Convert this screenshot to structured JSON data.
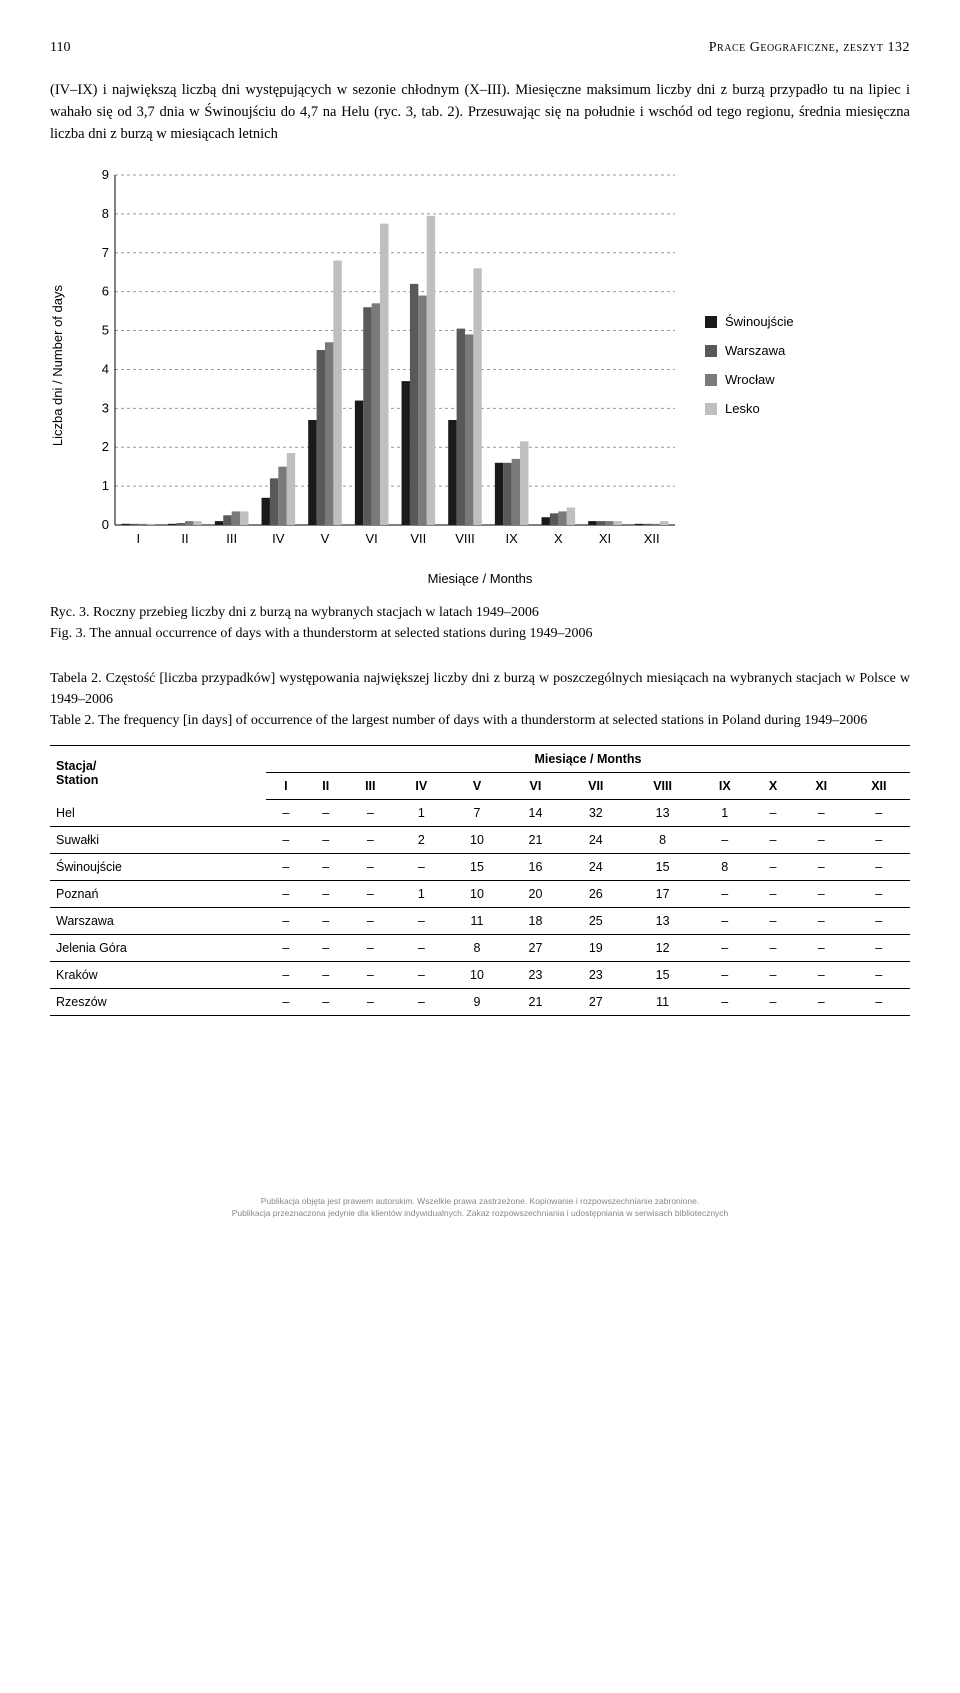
{
  "header": {
    "page_number": "110",
    "running_title": "Prace Geograficzne, zeszyt 132"
  },
  "body_paragraph": "(IV–IX) i największą liczbą dni występujących w sezonie chłodnym (X–III). Miesięczne maksimum liczby dni z burzą przypadło tu na lipiec i wahało się od 3,7 dnia w Świnoujściu do 4,7 na Helu (ryc. 3, tab. 2). Przesuwając się na południe i wschód od tego regionu, średnia miesięczna liczba dni z burzą w miesiącach letnich",
  "chart": {
    "type": "bar",
    "ylabel": "Liczba dni / Number of days",
    "xlabel": "Miesiące / Months",
    "ylim": [
      0,
      9
    ],
    "ytick_step": 1,
    "categories": [
      "I",
      "II",
      "III",
      "IV",
      "V",
      "VI",
      "VII",
      "VIII",
      "IX",
      "X",
      "XI",
      "XII"
    ],
    "series": [
      {
        "name": "Świnoujście",
        "color": "#1a1a1a",
        "values": [
          0.03,
          0.03,
          0.1,
          0.7,
          2.7,
          3.2,
          3.7,
          2.7,
          1.6,
          0.2,
          0.1,
          0.03
        ]
      },
      {
        "name": "Warszawa",
        "color": "#595959",
        "values": [
          0.03,
          0.05,
          0.25,
          1.2,
          4.5,
          5.6,
          6.2,
          5.05,
          1.6,
          0.3,
          0.1,
          0.03
        ]
      },
      {
        "name": "Wrocław",
        "color": "#7a7a7a",
        "values": [
          0.03,
          0.1,
          0.35,
          1.5,
          4.7,
          5.7,
          5.9,
          4.9,
          1.7,
          0.35,
          0.1,
          0.03
        ]
      },
      {
        "name": "Lesko",
        "color": "#bfbfbf",
        "values": [
          0.03,
          0.1,
          0.35,
          1.85,
          6.8,
          7.75,
          7.95,
          6.6,
          2.15,
          0.45,
          0.1,
          0.1
        ]
      }
    ],
    "grid_color": "#999999",
    "axis_color": "#000000",
    "background_color": "#ffffff",
    "bar_group_width": 0.72,
    "label_fontsize": 13,
    "tick_fontsize": 13,
    "font_family": "Arial, sans-serif"
  },
  "fig_caption": {
    "line1": "Ryc. 3. Roczny przebieg liczby dni z burzą na wybranych stacjach w latach 1949–2006",
    "line2": "Fig. 3. The annual occurrence of days with a thunderstorm at selected stations during 1949–2006"
  },
  "table_caption": {
    "line1": "Tabela 2. Częstość [liczba przypadków] występowania  największej liczby dni z burzą w poszczególnych miesiącach na wybranych stacjach w Polsce w 1949–2006",
    "line2": "Table 2. The frequency [in days] of occurrence of the largest number of days with a thunderstorm at selected stations in Poland during 1949–2006"
  },
  "table": {
    "station_header": "Stacja/\nStation",
    "months_header": "Miesiące / Months",
    "columns": [
      "I",
      "II",
      "III",
      "IV",
      "V",
      "VI",
      "VII",
      "VIII",
      "IX",
      "X",
      "XI",
      "XII"
    ],
    "rows": [
      {
        "station": "Hel",
        "vals": [
          "–",
          "–",
          "–",
          "1",
          "7",
          "14",
          "32",
          "13",
          "1",
          "–",
          "–",
          "–"
        ]
      },
      {
        "station": "Suwałki",
        "vals": [
          "–",
          "–",
          "–",
          "2",
          "10",
          "21",
          "24",
          "8",
          "–",
          "–",
          "–",
          "–"
        ]
      },
      {
        "station": "Świnoujście",
        "vals": [
          "–",
          "–",
          "–",
          "–",
          "15",
          "16",
          "24",
          "15",
          "8",
          "–",
          "–",
          "–"
        ]
      },
      {
        "station": "Poznań",
        "vals": [
          "–",
          "–",
          "–",
          "1",
          "10",
          "20",
          "26",
          "17",
          "–",
          "–",
          "–",
          "–"
        ]
      },
      {
        "station": "Warszawa",
        "vals": [
          "–",
          "–",
          "–",
          "–",
          "11",
          "18",
          "25",
          "13",
          "–",
          "–",
          "–",
          "–"
        ]
      },
      {
        "station": "Jelenia Góra",
        "vals": [
          "–",
          "–",
          "–",
          "–",
          "8",
          "27",
          "19",
          "12",
          "–",
          "–",
          "–",
          "–"
        ]
      },
      {
        "station": "Kraków",
        "vals": [
          "–",
          "–",
          "–",
          "–",
          "10",
          "23",
          "23",
          "15",
          "–",
          "–",
          "–",
          "–"
        ]
      },
      {
        "station": "Rzeszów",
        "vals": [
          "–",
          "–",
          "–",
          "–",
          "9",
          "21",
          "27",
          "11",
          "–",
          "–",
          "–",
          "–"
        ]
      }
    ]
  },
  "footer": {
    "line1": "Publikacja objęta jest prawem autorskim. Wszelkie prawa zastrzeżone. Kopiowanie i rozpowszechnianie zabronione.",
    "line2": "Publikacja przeznaczona jedynie dla klientów indywidualnych. Zakaz rozpowszechniania i udostępniania w serwisach bibliotecznych"
  }
}
